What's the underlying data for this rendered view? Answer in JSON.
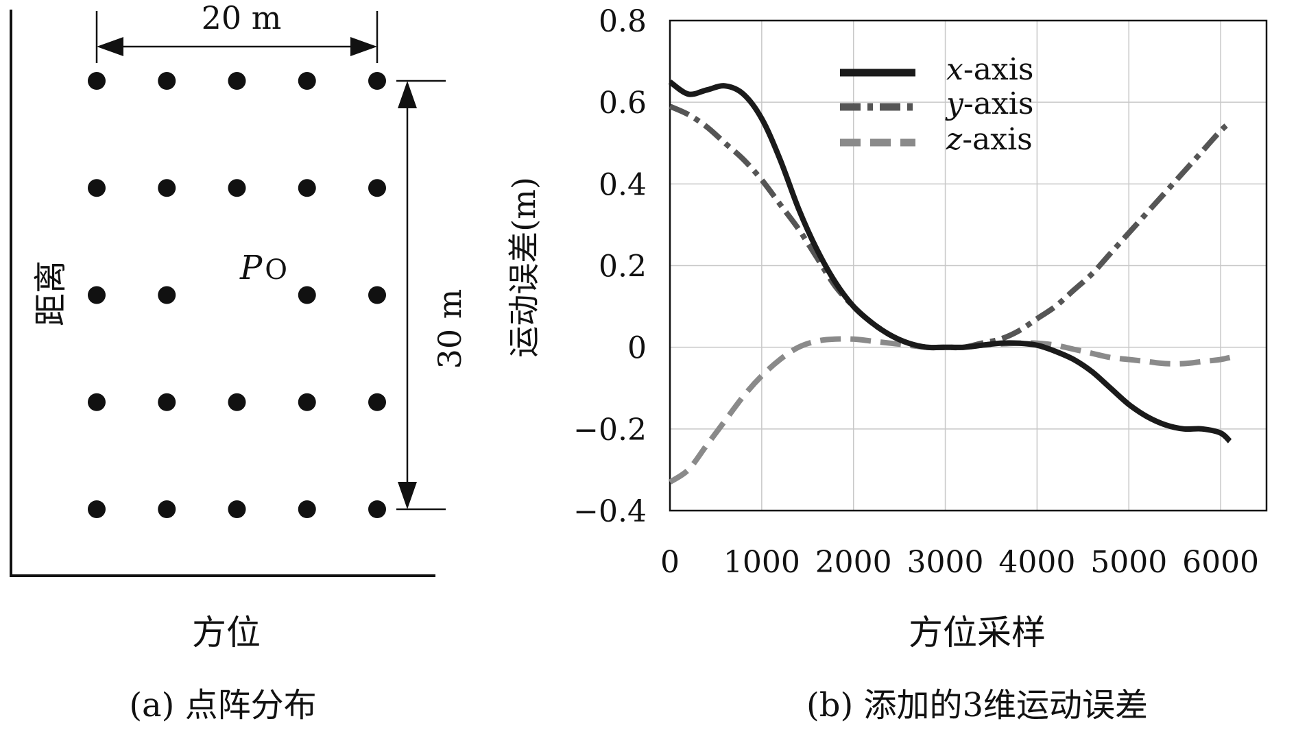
{
  "panel_a": {
    "width_label": "20 m",
    "height_label": "30 m",
    "y_label": "距离",
    "x_label": "方位",
    "point_label_main": "P",
    "point_label_sub": "O",
    "caption": "(a) 点阵分布",
    "grid": {
      "rows": 5,
      "cols": 5,
      "width_m": 20,
      "height_m": 30,
      "labeled_point": {
        "row": 2,
        "col": 2
      }
    }
  },
  "panel_b": {
    "caption": "(b) 添加的3维运动误差",
    "xlabel": "方位采样",
    "ylabel": "运动误差(m)"
  },
  "chart_data": {
    "type": "line",
    "title": "",
    "xlabel": "方位采样",
    "ylabel": "运动误差(m)",
    "xlim": [
      0,
      6500
    ],
    "ylim": [
      -0.4,
      0.8
    ],
    "xticks": [
      0,
      1000,
      2000,
      3000,
      4000,
      5000,
      6000
    ],
    "xtick_labels": [
      "0",
      "1000",
      "2000",
      "3000",
      "4000",
      "5000",
      "6000"
    ],
    "yticks": [
      -0.4,
      -0.2,
      0,
      0.2,
      0.4,
      0.6,
      0.8
    ],
    "ytick_labels": [
      "−0.4",
      "−0.2",
      "0",
      "0.2",
      "0.4",
      "0.6",
      "0.8"
    ],
    "grid": true,
    "legend_position": "top-left",
    "series": [
      {
        "name": "x-axis",
        "name_var": "x",
        "name_suffix": "-axis",
        "style": "solid",
        "color": "#1a1a1a",
        "x": [
          0,
          200,
          400,
          600,
          800,
          1000,
          1200,
          1400,
          1600,
          1800,
          2000,
          2200,
          2400,
          2600,
          2800,
          3000,
          3200,
          3400,
          3600,
          3800,
          4000,
          4200,
          4400,
          4600,
          4800,
          5000,
          5200,
          5400,
          5600,
          5800,
          6000,
          6100
        ],
        "y": [
          0.65,
          0.62,
          0.63,
          0.64,
          0.62,
          0.56,
          0.46,
          0.34,
          0.24,
          0.16,
          0.1,
          0.06,
          0.03,
          0.01,
          0.0,
          0.0,
          0.0,
          0.005,
          0.01,
          0.01,
          0.005,
          -0.01,
          -0.03,
          -0.06,
          -0.1,
          -0.14,
          -0.17,
          -0.19,
          -0.2,
          -0.2,
          -0.21,
          -0.23
        ]
      },
      {
        "name": "y-axis",
        "name_var": "y",
        "name_suffix": "-axis",
        "style": "dashdot",
        "color": "#555555",
        "x": [
          0,
          200,
          400,
          600,
          800,
          1000,
          1200,
          1400,
          1600,
          1800,
          2000,
          2200,
          2400,
          2600,
          2800,
          3000,
          3200,
          3400,
          3600,
          3800,
          4000,
          4200,
          4400,
          4600,
          4800,
          5000,
          5200,
          5400,
          5600,
          5800,
          6000,
          6100
        ],
        "y": [
          0.59,
          0.57,
          0.54,
          0.5,
          0.46,
          0.41,
          0.35,
          0.29,
          0.22,
          0.15,
          0.1,
          0.06,
          0.03,
          0.01,
          0.0,
          0.0,
          0.0,
          0.01,
          0.02,
          0.04,
          0.07,
          0.1,
          0.14,
          0.18,
          0.23,
          0.28,
          0.33,
          0.38,
          0.43,
          0.48,
          0.53,
          0.55
        ]
      },
      {
        "name": "z-axis",
        "name_var": "z",
        "name_suffix": "-axis",
        "style": "dashed",
        "color": "#8a8a8a",
        "x": [
          0,
          200,
          400,
          600,
          800,
          1000,
          1200,
          1400,
          1600,
          1800,
          2000,
          2200,
          2400,
          2600,
          2800,
          3000,
          3200,
          3400,
          3600,
          3800,
          4000,
          4200,
          4400,
          4600,
          4800,
          5000,
          5200,
          5400,
          5600,
          5800,
          6000,
          6100
        ],
        "y": [
          -0.33,
          -0.3,
          -0.24,
          -0.18,
          -0.12,
          -0.07,
          -0.03,
          0.0,
          0.015,
          0.02,
          0.02,
          0.015,
          0.01,
          0.005,
          0.0,
          0.0,
          0.0,
          0.005,
          0.008,
          0.01,
          0.01,
          0.005,
          -0.005,
          -0.015,
          -0.025,
          -0.03,
          -0.035,
          -0.04,
          -0.04,
          -0.035,
          -0.03,
          -0.025
        ]
      }
    ]
  }
}
